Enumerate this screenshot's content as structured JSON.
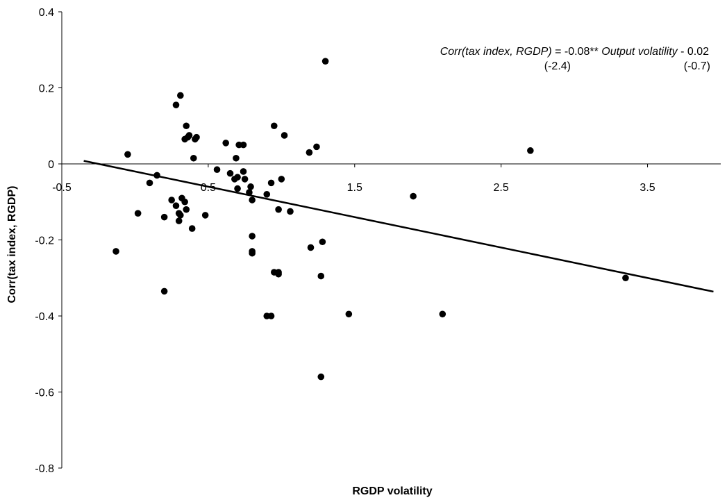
{
  "chart_data": {
    "type": "scatter",
    "xlabel": "RGDP volatility",
    "ylabel": "Corr(tax index, RGDP)",
    "xlim": [
      -0.5,
      4
    ],
    "ylim": [
      -0.8,
      0.4
    ],
    "x_ticks": [
      -0.5,
      0.5,
      1.5,
      2.5,
      3.5
    ],
    "x_tick_labels": [
      "-0.5",
      "0.5",
      "1.5",
      "2.5",
      "3.5"
    ],
    "y_ticks": [
      -0.8,
      -0.6,
      -0.4,
      -0.2,
      0,
      0.2,
      0.4
    ],
    "y_tick_labels": [
      "-0.8",
      "-0.6",
      "-0.4",
      "-0.2",
      "0",
      "0.2",
      "0.4"
    ],
    "grid": false,
    "legend": false,
    "annotation": {
      "line1_italic_a": "Corr(tax index, RGDP)",
      "line1_plain_a": " = -0.08** ",
      "line1_italic_b": "Output volatility",
      "line1_plain_b": " - 0.02",
      "tstat_coef": "(-2.4)",
      "tstat_const": "(-0.7)"
    },
    "trendline": {
      "slope": -0.08,
      "intercept": -0.02,
      "x_start": -0.35,
      "x_end": 3.95
    },
    "x": [
      0.95,
      -0.05,
      0.15,
      0.1,
      0.25,
      0.31,
      0.28,
      0.3,
      0.3,
      0.32,
      0.34,
      0.35,
      0.36,
      0.37,
      0.4,
      0.41,
      0.42,
      0.34,
      0.56,
      0.62,
      0.65,
      0.68,
      0.69,
      0.7,
      0.71,
      0.74,
      0.74,
      0.75,
      0.78,
      0.8,
      0.8,
      0.8,
      0.8,
      0.79,
      0.7,
      0.9,
      0.93,
      0.95,
      0.98,
      1.0,
      1.02,
      1.06,
      1.19,
      1.2,
      1.24,
      1.27,
      1.28,
      0.93,
      0.98,
      1.27,
      1.3,
      0.48,
      0.2,
      0.35,
      0.39,
      0.28,
      0.31,
      1.46,
      2.1,
      1.9,
      2.7,
      3.35,
      0.9,
      0.98,
      0.02,
      0.2,
      -0.13
    ],
    "y": [
      0.1,
      0.025,
      -0.03,
      -0.05,
      -0.095,
      -0.135,
      -0.11,
      -0.13,
      -0.15,
      -0.09,
      -0.1,
      -0.12,
      0.07,
      0.075,
      0.015,
      0.065,
      0.07,
      0.065,
      -0.015,
      0.055,
      -0.025,
      -0.04,
      0.015,
      -0.035,
      0.05,
      0.05,
      -0.02,
      -0.04,
      -0.075,
      -0.095,
      -0.23,
      -0.235,
      -0.19,
      -0.06,
      -0.065,
      -0.08,
      -0.05,
      -0.285,
      -0.29,
      -0.04,
      0.075,
      -0.125,
      0.03,
      -0.22,
      0.045,
      -0.295,
      -0.205,
      -0.4,
      -0.12,
      -0.56,
      0.27,
      -0.135,
      -0.335,
      0.1,
      -0.17,
      0.155,
      0.18,
      -0.395,
      -0.395,
      -0.085,
      0.035,
      -0.3,
      -0.4,
      -0.285,
      -0.13,
      -0.14,
      -0.23
    ]
  }
}
